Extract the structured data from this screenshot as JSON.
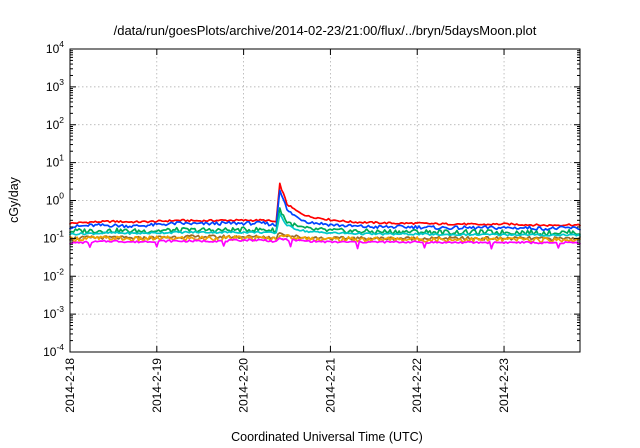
{
  "chart_data": {
    "type": "line",
    "title": "/data/run/goesPlots/archive/2014-02-23/21:00/flux/../bryn/5daysMoon.plot",
    "xlabel": "Coordinated Universal Time (UTC)",
    "ylabel": "cGy/day",
    "y_scale": "log",
    "ylim": [
      0.0001,
      10000
    ],
    "y_ticks": [
      {
        "base": "10",
        "exp": "-4",
        "value": 0.0001
      },
      {
        "base": "10",
        "exp": "-3",
        "value": 0.001
      },
      {
        "base": "10",
        "exp": "-2",
        "value": 0.01
      },
      {
        "base": "10",
        "exp": "-1",
        "value": 0.1
      },
      {
        "base": "10",
        "exp": "0",
        "value": 1
      },
      {
        "base": "10",
        "exp": "1",
        "value": 10
      },
      {
        "base": "10",
        "exp": "2",
        "value": 100
      },
      {
        "base": "10",
        "exp": "3",
        "value": 1000
      },
      {
        "base": "10",
        "exp": "4",
        "value": 10000
      }
    ],
    "xlim": [
      "2014-02-18 00:00",
      "2014-02-23 21:00"
    ],
    "x_ticks": [
      "2014-2-18",
      "2014-2-19",
      "2014-2-20",
      "2014-2-21",
      "2014-2-22",
      "2014-2-23"
    ],
    "grid": true,
    "legend": "none",
    "x": [
      "2014-02-18 00:00",
      "2014-02-18 06:00",
      "2014-02-18 12:00",
      "2014-02-18 18:00",
      "2014-02-19 00:00",
      "2014-02-19 06:00",
      "2014-02-19 12:00",
      "2014-02-19 18:00",
      "2014-02-20 00:00",
      "2014-02-20 06:00",
      "2014-02-20 09:00",
      "2014-02-20 10:00",
      "2014-02-20 11:00",
      "2014-02-20 12:00",
      "2014-02-20 15:00",
      "2014-02-20 18:00",
      "2014-02-21 00:00",
      "2014-02-21 06:00",
      "2014-02-21 12:00",
      "2014-02-21 18:00",
      "2014-02-22 00:00",
      "2014-02-22 06:00",
      "2014-02-22 12:00",
      "2014-02-22 18:00",
      "2014-02-23 00:00",
      "2014-02-23 06:00",
      "2014-02-23 12:00",
      "2014-02-23 18:00",
      "2014-02-23 21:00"
    ],
    "series": [
      {
        "color": "#ff0000",
        "values": [
          0.25,
          0.27,
          0.28,
          0.27,
          0.28,
          0.3,
          0.29,
          0.3,
          0.3,
          0.3,
          0.27,
          2.7,
          1.5,
          0.8,
          0.5,
          0.38,
          0.31,
          0.27,
          0.26,
          0.25,
          0.25,
          0.24,
          0.24,
          0.23,
          0.24,
          0.23,
          0.22,
          0.23,
          0.22
        ]
      },
      {
        "color": "#0044ff",
        "values": [
          0.2,
          0.22,
          0.22,
          0.21,
          0.23,
          0.25,
          0.24,
          0.25,
          0.25,
          0.25,
          0.22,
          2.0,
          1.1,
          0.55,
          0.35,
          0.27,
          0.23,
          0.21,
          0.2,
          0.2,
          0.2,
          0.19,
          0.19,
          0.19,
          0.19,
          0.19,
          0.18,
          0.19,
          0.18
        ]
      },
      {
        "color": "#00aa55",
        "values": [
          0.155,
          0.16,
          0.16,
          0.155,
          0.16,
          0.165,
          0.165,
          0.165,
          0.17,
          0.17,
          0.16,
          0.6,
          0.4,
          0.27,
          0.2,
          0.175,
          0.16,
          0.155,
          0.15,
          0.15,
          0.15,
          0.145,
          0.145,
          0.145,
          0.145,
          0.145,
          0.14,
          0.145,
          0.14
        ]
      },
      {
        "color": "#00c8c8",
        "values": [
          0.13,
          0.135,
          0.14,
          0.135,
          0.14,
          0.145,
          0.145,
          0.145,
          0.145,
          0.145,
          0.135,
          0.45,
          0.3,
          0.22,
          0.17,
          0.15,
          0.14,
          0.135,
          0.13,
          0.13,
          0.13,
          0.125,
          0.125,
          0.125,
          0.125,
          0.125,
          0.12,
          0.125,
          0.12
        ]
      },
      {
        "color": "#9a6a28",
        "values": [
          0.1,
          0.105,
          0.105,
          0.1,
          0.105,
          0.11,
          0.11,
          0.11,
          0.11,
          0.11,
          0.1,
          0.15,
          0.13,
          0.12,
          0.11,
          0.105,
          0.1,
          0.1,
          0.1,
          0.1,
          0.1,
          0.1,
          0.1,
          0.1,
          0.1,
          0.1,
          0.098,
          0.1,
          0.098
        ]
      },
      {
        "color": "#f0a000",
        "values": [
          0.095,
          0.1,
          0.1,
          0.095,
          0.1,
          0.1,
          0.1,
          0.1,
          0.1,
          0.1,
          0.095,
          0.13,
          0.12,
          0.11,
          0.1,
          0.1,
          0.095,
          0.095,
          0.095,
          0.095,
          0.095,
          0.093,
          0.093,
          0.093,
          0.093,
          0.093,
          0.09,
          0.093,
          0.09
        ]
      },
      {
        "color": "#ff00ff",
        "values": [
          0.075,
          0.08,
          0.085,
          0.08,
          0.085,
          0.085,
          0.085,
          0.085,
          0.09,
          0.09,
          0.08,
          0.1,
          0.095,
          0.09,
          0.088,
          0.085,
          0.08,
          0.08,
          0.08,
          0.08,
          0.08,
          0.078,
          0.078,
          0.078,
          0.078,
          0.078,
          0.075,
          0.078,
          0.075
        ]
      }
    ]
  }
}
